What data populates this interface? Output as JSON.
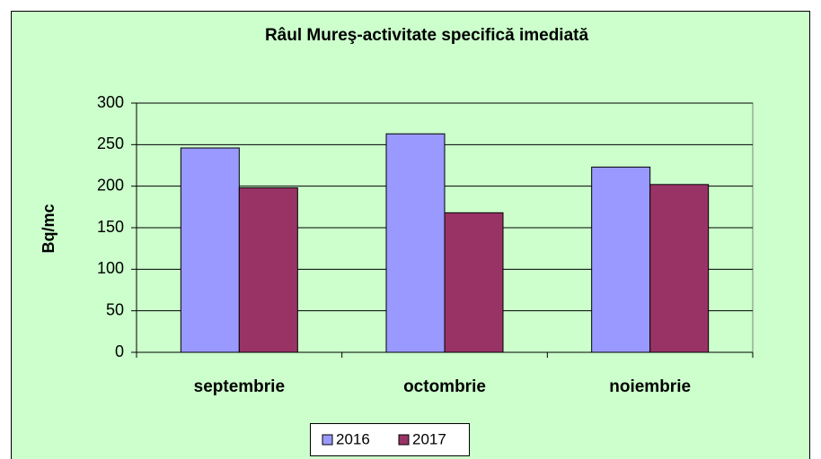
{
  "chart_data": {
    "type": "bar",
    "title": "Râul Mureş-activitate specifică imediată",
    "y_label": "Bq/mc",
    "categories": [
      "septembrie",
      "octombrie",
      "noiembrie"
    ],
    "series": [
      {
        "name": "2016",
        "color": "#9999ff",
        "values": [
          246,
          263,
          223
        ]
      },
      {
        "name": "2017",
        "color": "#993366",
        "values": [
          198,
          168,
          202
        ]
      }
    ],
    "ylim": [
      0,
      300
    ],
    "yticks": [
      0,
      50,
      100,
      150,
      200,
      250,
      300
    ],
    "grid": true,
    "legend": "bottom"
  }
}
